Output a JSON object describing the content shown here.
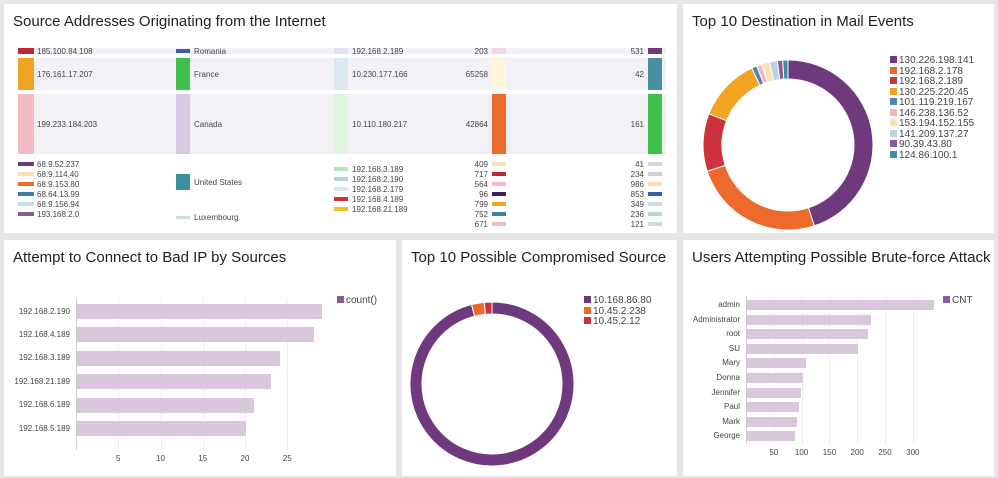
{
  "panels": {
    "sankey": {
      "title": "Source Addresses Originating from the Internet",
      "col1": [
        "185.100.84.108",
        "176.161.17.207",
        "199.233.184.203",
        "68.9.52.237",
        "68.9.114.40",
        "68.9.153.80",
        "68.64.13.99",
        "68.9.156.94",
        "193.168.2.0"
      ],
      "col2": [
        "Romania",
        "France",
        "Canada",
        "United States",
        "Luxembourg"
      ],
      "col3": [
        "192.168.2.189",
        "10.230.177.166",
        "10.110.180.217",
        "192.168.3.189",
        "192.168.2.190",
        "192.168.2.179",
        "192.168.4.189",
        "192.168.21.189"
      ],
      "col4": [
        "203",
        "65258",
        "42864",
        "409",
        "717",
        "564",
        "96",
        "799",
        "752",
        "671"
      ],
      "col5": [
        "531",
        "42",
        "161",
        "41",
        "234",
        "986",
        "853",
        "349",
        "236",
        "121"
      ]
    },
    "mail": {
      "title": "Top 10 Destination in Mail Events"
    },
    "badip": {
      "title": "Attempt to Connect to Bad IP by Sources",
      "legend": "count()"
    },
    "compromised": {
      "title": "Top 10 Possible Compromised Source"
    },
    "brute": {
      "title": "Users Attempting Possible Brute-force Attack",
      "legend": "CNT"
    }
  },
  "chart_data": [
    {
      "type": "pie",
      "title": "Top 10 Destination in Mail Events",
      "donut": true,
      "labels": [
        "130.226.198.141",
        "192.168.2.178",
        "192.168.2.189",
        "130.225.220.45",
        "101.119.219.167",
        "146.238.136.52",
        "153.194.152.155",
        "141.209.137.27",
        "90.39.43.80",
        "124.86.100.1"
      ],
      "values": [
        45,
        25,
        11,
        12,
        1,
        1,
        1.5,
        1.5,
        1,
        1
      ],
      "colors": [
        "#6f3a7d",
        "#ec6a2c",
        "#d0313f",
        "#f0a422",
        "#4a86b4",
        "#f2b8bd",
        "#f6e3b4",
        "#b8d4e0",
        "#8a5a9a",
        "#3b8f9c"
      ]
    },
    {
      "type": "bar",
      "orientation": "horizontal",
      "title": "Attempt to Connect to Bad IP by Sources",
      "categories": [
        "192.168.2.190",
        "192.168.4.189",
        "192.168.3.189",
        "192.168.21.189",
        "192.168.6.189",
        "192.168.5.189"
      ],
      "series": [
        {
          "name": "count()",
          "values": [
            29,
            28,
            24,
            23,
            21,
            20
          ]
        }
      ],
      "xticks": [
        5,
        10,
        15,
        20,
        25
      ],
      "xlim": [
        0,
        30
      ]
    },
    {
      "type": "pie",
      "title": "Top 10 Possible Compromised Source",
      "donut": true,
      "labels": [
        "10.168.86.80",
        "10.45.2.238",
        "10.45.2.12"
      ],
      "values": [
        96,
        2.5,
        1.5
      ],
      "colors": [
        "#6f3a7d",
        "#ec6a2c",
        "#d0313f"
      ]
    },
    {
      "type": "bar",
      "orientation": "horizontal",
      "title": "Users Attempting Possible Brute-force Attack",
      "categories": [
        "admin",
        "Administrator",
        "root",
        "SU",
        "Mary",
        "Donna",
        "Jennifer",
        "Paul",
        "Mark",
        "George"
      ],
      "series": [
        {
          "name": "CNT",
          "values": [
            336,
            223,
            218,
            200,
            106,
            101,
            97,
            94,
            90,
            86
          ]
        }
      ],
      "xticks": [
        50,
        100,
        150,
        200,
        250,
        300
      ],
      "xlim": [
        0,
        350
      ]
    }
  ]
}
